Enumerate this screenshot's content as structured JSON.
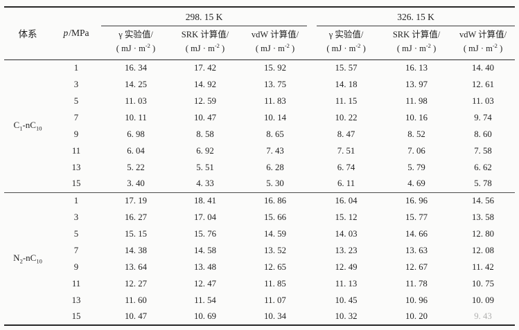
{
  "page": {
    "background": "#fbfbfa",
    "text_color": "#1f1f1f",
    "rule_color": "#262626"
  },
  "table": {
    "header": {
      "system_label": "体系",
      "pressure_symbol": "p",
      "pressure_suffix": "/MPa",
      "temp_groups": [
        "298. 15 K",
        "326. 15 K"
      ],
      "value_columns": [
        {
          "title": "γ 实验值/",
          "unit_pre": "( mJ · m",
          "unit_sup": "-2",
          "unit_post": " )"
        },
        {
          "title": "SRK 计算值/",
          "unit_pre": "( mJ · m",
          "unit_sup": "-2",
          "unit_post": " )"
        },
        {
          "title": "vdW 计算值/",
          "unit_pre": "( mJ · m",
          "unit_sup": "-2",
          "unit_post": " )"
        },
        {
          "title": "γ 实验值/",
          "unit_pre": "( mJ · m",
          "unit_sup": "-2",
          "unit_post": " )"
        },
        {
          "title": "SRK 计算值/",
          "unit_pre": "( mJ · m",
          "unit_sup": "-2",
          "unit_post": " )"
        },
        {
          "title": "vdW 计算值/",
          "unit_pre": "( mJ · m",
          "unit_sup": "-2",
          "unit_post": " )"
        }
      ]
    },
    "sections": [
      {
        "system_text": "C1-nC10",
        "system_parts": [
          {
            "t": "C"
          },
          {
            "t": "1",
            "sub": true
          },
          {
            "t": "-nC"
          },
          {
            "t": "10",
            "sub": true
          }
        ],
        "rows": [
          {
            "p": "1",
            "values": [
              "16. 34",
              "17. 42",
              "15. 92",
              "15. 57",
              "16. 13",
              "14. 40"
            ]
          },
          {
            "p": "3",
            "values": [
              "14. 25",
              "14. 92",
              "13. 75",
              "14. 18",
              "13. 97",
              "12. 61"
            ]
          },
          {
            "p": "5",
            "values": [
              "11. 03",
              "12. 59",
              "11. 83",
              "11. 15",
              "11. 98",
              "11. 03"
            ]
          },
          {
            "p": "7",
            "values": [
              "10. 11",
              "10. 47",
              "10. 14",
              "10. 22",
              "10. 16",
              "9. 74"
            ]
          },
          {
            "p": "9",
            "values": [
              "6. 98",
              "8. 58",
              "8. 65",
              "8. 47",
              "8. 52",
              "8. 60"
            ]
          },
          {
            "p": "11",
            "values": [
              "6. 04",
              "6. 92",
              "7. 43",
              "7. 51",
              "7. 06",
              "7. 58"
            ]
          },
          {
            "p": "13",
            "values": [
              "5. 22",
              "5. 51",
              "6. 28",
              "6. 74",
              "5. 79",
              "6. 62"
            ]
          },
          {
            "p": "15",
            "values": [
              "3. 40",
              "4. 33",
              "5. 30",
              "6. 11",
              "4. 69",
              "5. 78"
            ]
          }
        ]
      },
      {
        "system_text": "N2-nC10",
        "system_parts": [
          {
            "t": "N"
          },
          {
            "t": "2",
            "sub": true
          },
          {
            "t": "-nC"
          },
          {
            "t": "10",
            "sub": true
          }
        ],
        "rows": [
          {
            "p": "1",
            "values": [
              "17. 19",
              "18. 41",
              "16. 86",
              "16. 04",
              "16. 96",
              "14. 56"
            ]
          },
          {
            "p": "3",
            "values": [
              "16. 27",
              "17. 04",
              "15. 66",
              "15. 12",
              "15. 77",
              "13. 58"
            ]
          },
          {
            "p": "5",
            "values": [
              "15. 15",
              "15. 76",
              "14. 59",
              "14. 03",
              "14. 66",
              "12. 80"
            ]
          },
          {
            "p": "7",
            "values": [
              "14. 38",
              "14. 58",
              "13. 52",
              "13. 23",
              "13. 63",
              "12. 08"
            ]
          },
          {
            "p": "9",
            "values": [
              "13. 64",
              "13. 48",
              "12. 65",
              "12. 49",
              "12. 67",
              "11. 42"
            ]
          },
          {
            "p": "11",
            "values": [
              "12. 27",
              "12. 47",
              "11. 85",
              "11. 13",
              "11. 78",
              "10. 75"
            ]
          },
          {
            "p": "13",
            "values": [
              "11. 60",
              "11. 54",
              "11. 07",
              "10. 45",
              "10. 96",
              "10. 09"
            ]
          },
          {
            "p": "15",
            "values": [
              "10. 47",
              "10. 69",
              "10. 34",
              "10. 32",
              "10. 20",
              "9. 43"
            ],
            "faded_value_index": 5
          }
        ]
      }
    ]
  }
}
